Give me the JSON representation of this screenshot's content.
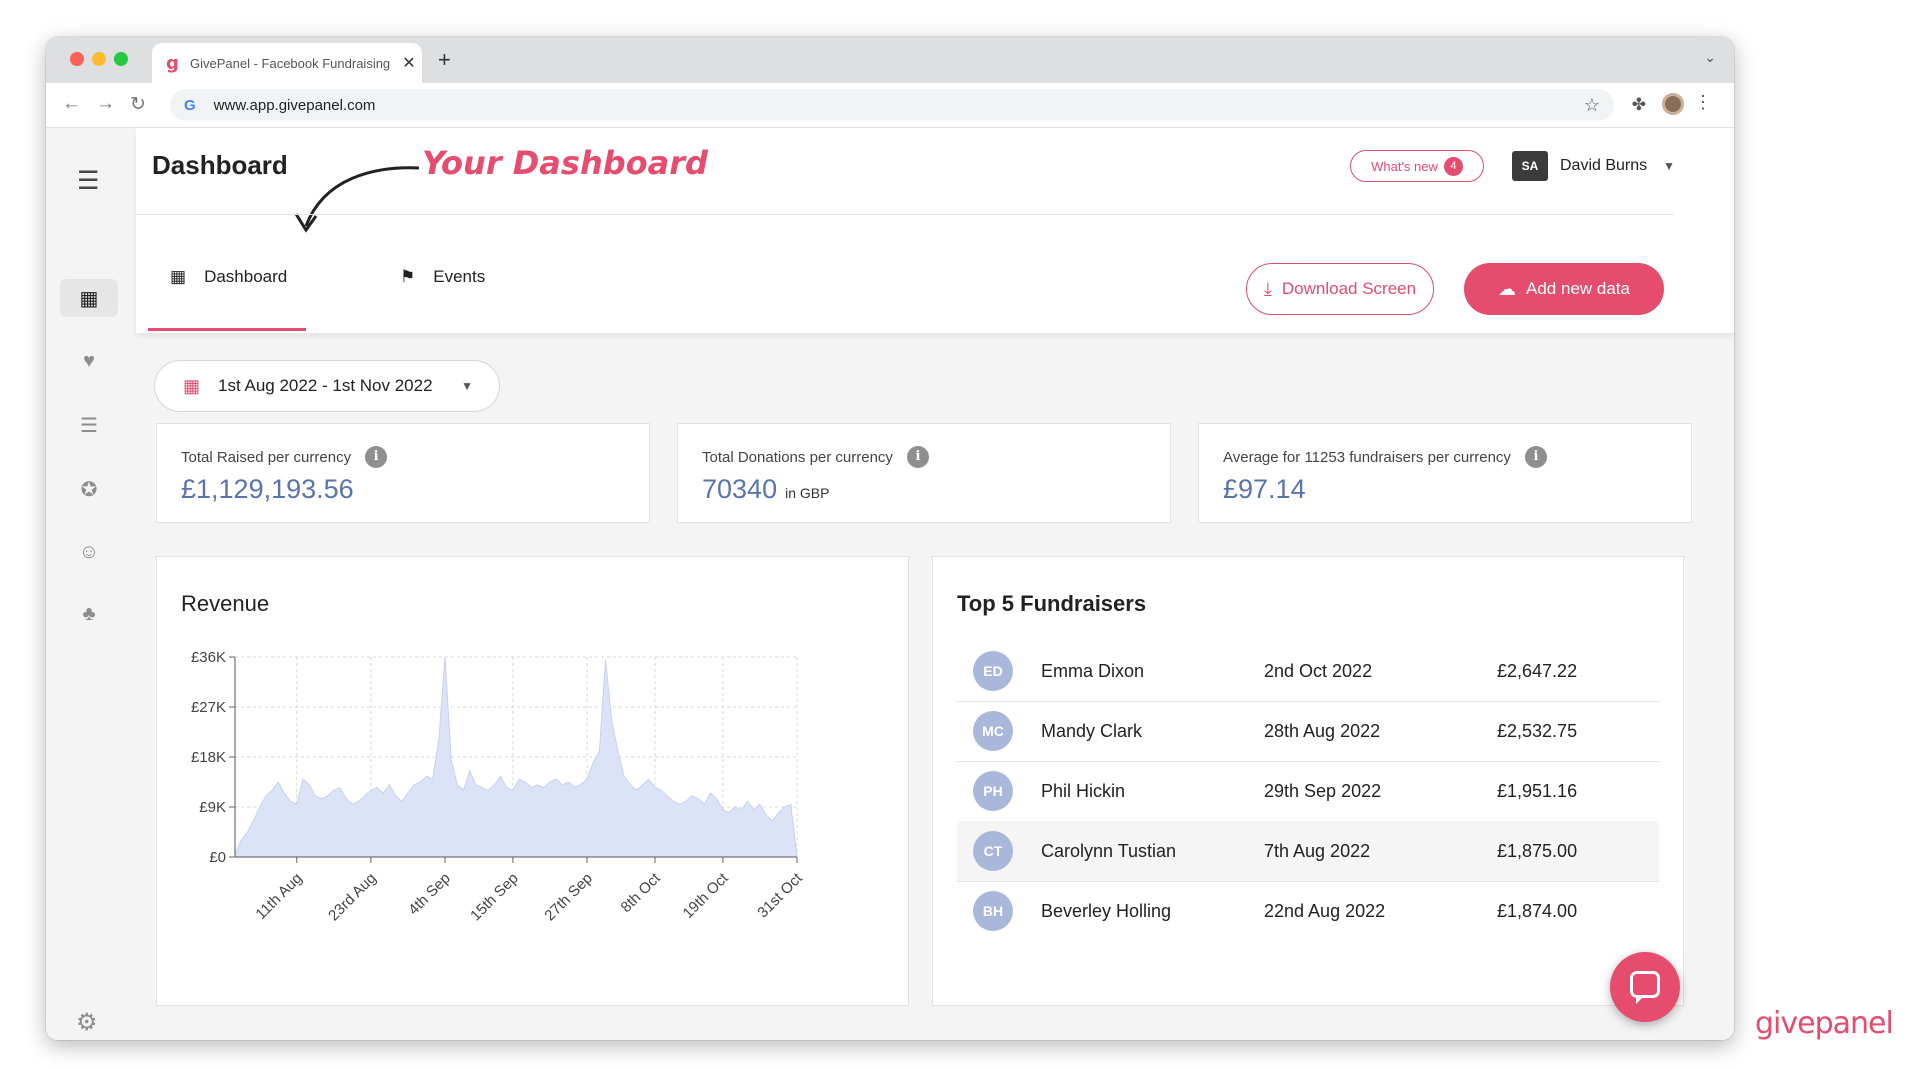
{
  "browser": {
    "tab_title": "GivePanel - Facebook Fundraising",
    "tab_favicon": "g",
    "url": "www.app.givepanel.com",
    "newtab_label": "+",
    "close_label": "✕",
    "icons": [
      "back-icon",
      "forward-icon",
      "reload-icon",
      "google-icon",
      "star-icon",
      "extension-icon",
      "profile-icon",
      "kebab-icon"
    ]
  },
  "sidebar": {
    "collapse_label": "⌄",
    "menu_label": "☰",
    "items": [
      {
        "icon": "grid-icon",
        "glyph": "▦",
        "active": true
      },
      {
        "icon": "heart-icon",
        "glyph": "♥"
      },
      {
        "icon": "list-icon",
        "glyph": "☰"
      },
      {
        "icon": "award-icon",
        "glyph": "✪"
      },
      {
        "icon": "user-plus-icon",
        "glyph": "☺"
      },
      {
        "icon": "donor-icon",
        "glyph": "♣"
      }
    ],
    "settings_glyph": "⚙"
  },
  "header": {
    "title": "Dashboard",
    "annotation": "Your Dashboard",
    "whats_new_label": "What's new",
    "whats_new_count": "4",
    "user_initials": "SA",
    "user_name": "David Burns",
    "user_caret": "▼",
    "tabs": [
      {
        "label": "Dashboard",
        "glyph": "▦",
        "active": true
      },
      {
        "label": "Events",
        "glyph": "⚑"
      }
    ],
    "download_label": "Download Screen",
    "download_glyph": "⤓",
    "add_label": "Add new data",
    "add_glyph": "☁"
  },
  "filters": {
    "date_range": "1st Aug 2022 - 1st Nov 2022",
    "calendar_glyph": "▦",
    "caret": "▼"
  },
  "stats": [
    {
      "label": "Total Raised per currency",
      "value": "£1,129,193.56",
      "unit": ""
    },
    {
      "label": "Total Donations per currency",
      "value": "70340",
      "unit": "in GBP"
    },
    {
      "label": "Average for 11253 fundraisers per currency",
      "value": "£97.14",
      "unit": ""
    }
  ],
  "info_glyph": "i",
  "revenue": {
    "title": "Revenue"
  },
  "chart_data": {
    "type": "area",
    "title": "Revenue",
    "xlabel": "",
    "ylabel": "",
    "ylim": [
      0,
      36000
    ],
    "yticks": [
      "£0",
      "£9K",
      "£18K",
      "£27K",
      "£36K"
    ],
    "ytick_values": [
      0,
      9000,
      18000,
      27000,
      36000
    ],
    "grid": true,
    "fill_color": "#dde3f7",
    "x_tick_labels": [
      "11th Aug",
      "23rd Aug",
      "4th Sep",
      "15th Sep",
      "27th Sep",
      "8th Oct",
      "19th Oct",
      "31st Oct"
    ],
    "x_tick_index": [
      10,
      22,
      34,
      45,
      57,
      68,
      79,
      91
    ],
    "series": [
      {
        "values": [
          500,
          3000,
          4500,
          6500,
          9000,
          11000,
          12000,
          13500,
          11500,
          10000,
          9500,
          14000,
          13000,
          11000,
          10500,
          11000,
          12000,
          12500,
          10500,
          9500,
          10000,
          11000,
          12000,
          12500,
          11500,
          13000,
          11000,
          10000,
          11500,
          13000,
          13500,
          14500,
          14000,
          21000,
          36000,
          17500,
          13000,
          12000,
          15500,
          13000,
          12500,
          12000,
          13000,
          14500,
          12500,
          12000,
          14000,
          13500,
          12500,
          13000,
          12500,
          13500,
          14000,
          13000,
          13500,
          12500,
          13000,
          14000,
          17000,
          19000,
          35500,
          24500,
          19000,
          14500,
          13000,
          12000,
          13000,
          14000,
          12500,
          12000,
          11000,
          10000,
          9500,
          10000,
          11000,
          10500,
          9500,
          11500,
          10500,
          8500,
          8000,
          9000,
          8500,
          10000,
          8500,
          9500,
          7500,
          6500,
          8000,
          9000,
          9500,
          0
        ]
      }
    ]
  },
  "top5": {
    "title": "Top 5 Fundraisers",
    "rows": [
      {
        "initials": "ED",
        "name": "Emma Dixon",
        "date": "2nd Oct 2022",
        "amount": "£2,647.22"
      },
      {
        "initials": "MC",
        "name": "Mandy Clark",
        "date": "28th Aug 2022",
        "amount": "£2,532.75"
      },
      {
        "initials": "PH",
        "name": "Phil Hickin",
        "date": "29th Sep 2022",
        "amount": "£1,951.16"
      },
      {
        "initials": "CT",
        "name": "Carolynn Tustian",
        "date": "7th Aug 2022",
        "amount": "£1,875.00"
      },
      {
        "initials": "BH",
        "name": "Beverley Holling",
        "date": "22nd Aug 2022",
        "amount": "£1,874.00"
      }
    ]
  },
  "brand": "givepanel",
  "colors": {
    "accent": "#e64c6d",
    "value": "#5a74ae",
    "avatar": "#a9b8da"
  }
}
